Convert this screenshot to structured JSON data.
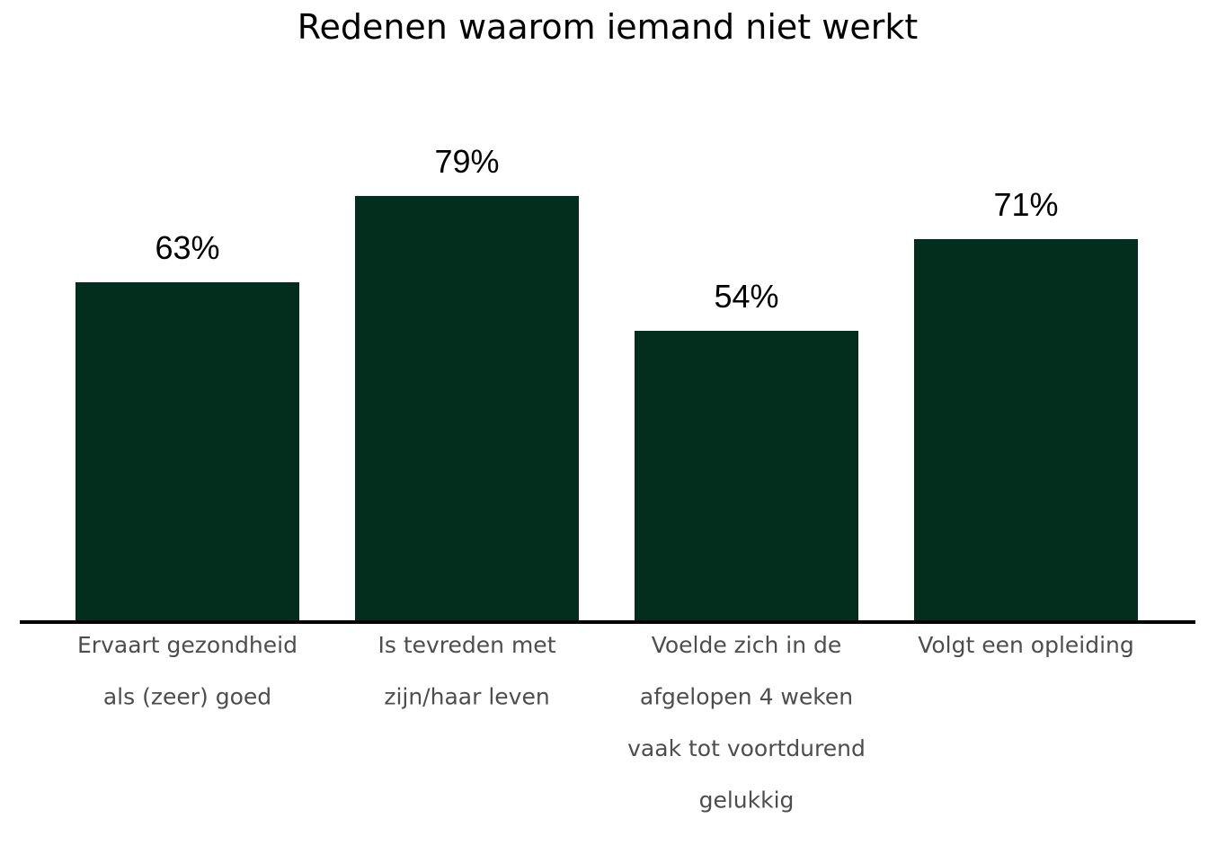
{
  "chart_data": {
    "type": "bar",
    "title": "Redenen waarom iemand niet werkt",
    "xlabel": "",
    "ylabel": "",
    "categories": [
      [
        "Ervaart gezondheid",
        "als (zeer) goed"
      ],
      [
        "Is tevreden met",
        "zijn/haar leven"
      ],
      [
        "Voelde zich in de",
        "afgelopen 4 weken",
        "vaak tot voortdurend",
        "gelukkig"
      ],
      [
        "Volgt een opleiding"
      ]
    ],
    "values": [
      63,
      79,
      54,
      71
    ],
    "value_labels": [
      "63%",
      "79%",
      "54%",
      "71%"
    ],
    "unit": "%",
    "ylim": [
      0,
      100
    ],
    "grid": false,
    "legend": "none",
    "colors": {
      "bar": "#032d1c",
      "axis": "#000000",
      "category_text": "#4d4d4d",
      "value_text": "#000000"
    }
  }
}
